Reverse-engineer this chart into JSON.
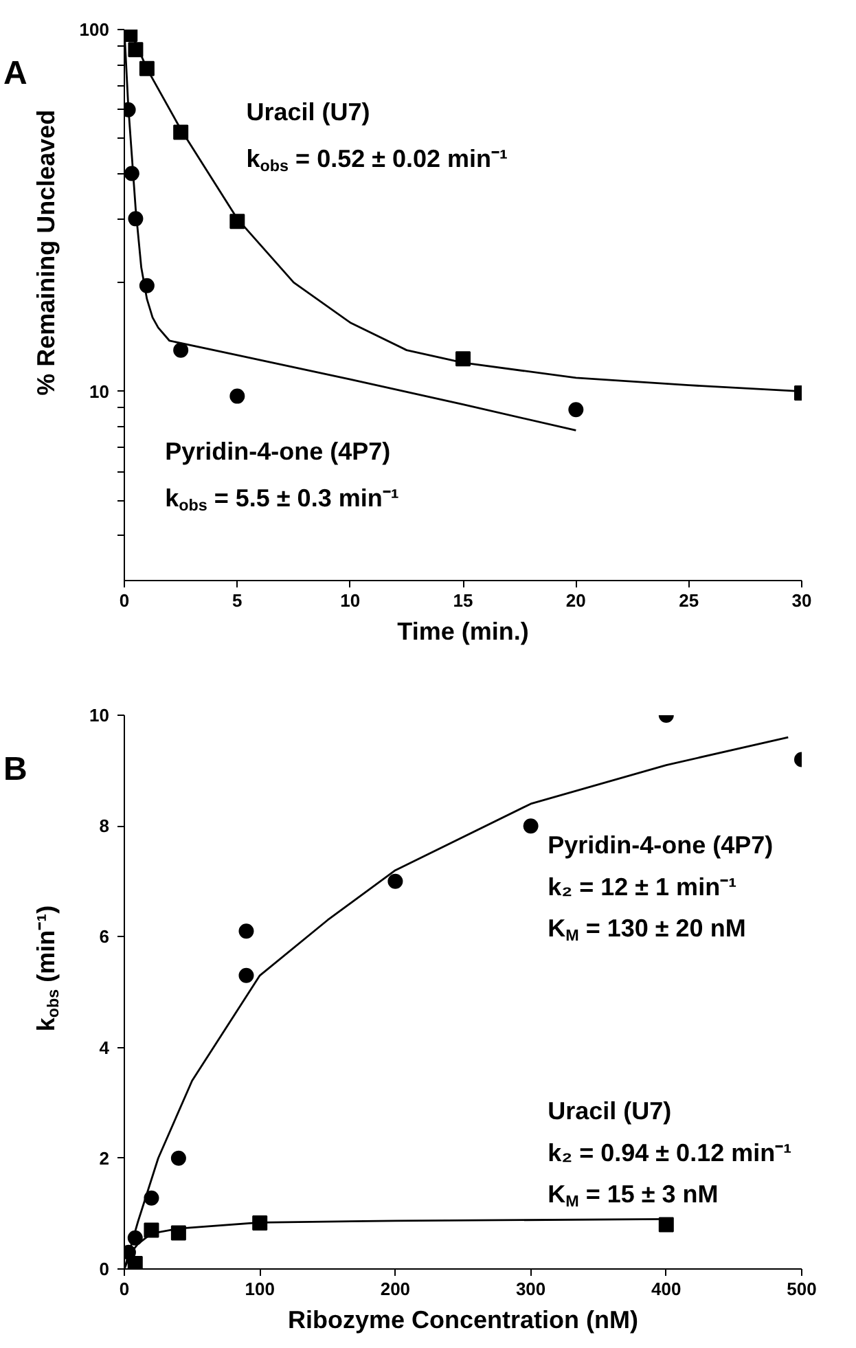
{
  "chart_data": [
    {
      "type": "scatter",
      "title": "A",
      "xlabel": "Time (min.)",
      "ylabel": "% Remaining Uncleaved",
      "log": "y",
      "grid": false,
      "xlim": [
        0,
        30
      ],
      "ylim": [
        3,
        100
      ],
      "xticks": [
        0,
        5,
        10,
        15,
        20,
        25,
        30
      ],
      "yticks": [
        10,
        100,
        {
          "value": 4,
          "label": null
        },
        {
          "value": 5,
          "label": null
        },
        {
          "value": 6,
          "label": null
        },
        {
          "value": 7,
          "label": null
        },
        {
          "value": 8,
          "label": null
        },
        {
          "value": 9,
          "label": null
        },
        {
          "value": 20,
          "label": null
        },
        {
          "value": 30,
          "label": null
        },
        {
          "value": 40,
          "label": null
        },
        {
          "value": 50,
          "label": null
        },
        {
          "value": 60,
          "label": null
        },
        {
          "value": 70,
          "label": null
        },
        {
          "value": 80,
          "label": null
        },
        {
          "value": 90,
          "label": null
        }
      ],
      "series": [
        {
          "marker": "square",
          "color": "#000000",
          "x": [
            0.25,
            0.5,
            1,
            2.5,
            5,
            15,
            30
          ],
          "values": [
            97,
            88,
            78,
            52,
            29.5,
            12.3,
            9.9
          ]
        },
        {
          "marker": "circle",
          "color": "#000000",
          "x": [
            0.17,
            0.33,
            0.5,
            1,
            2.5,
            5,
            20
          ],
          "values": [
            60,
            40,
            30,
            19.6,
            13,
            9.7,
            8.9
          ]
        },
        {
          "type": "line",
          "marker": "none",
          "color": "#000000",
          "x": [
            0,
            0.5,
            1,
            2.5,
            5,
            7.5,
            10,
            12.5,
            15,
            20,
            25,
            30
          ],
          "values": [
            100,
            92,
            78,
            53,
            30,
            20,
            15.5,
            13,
            12,
            10.9,
            10.4,
            10
          ]
        },
        {
          "type": "line",
          "marker": "none",
          "color": "#000000",
          "x": [
            0,
            0.17,
            0.33,
            0.5,
            0.75,
            1,
            1.25,
            1.5,
            2,
            5,
            10,
            15,
            20
          ],
          "values": [
            100,
            62,
            45,
            32,
            22,
            18,
            16,
            15,
            13.8,
            12.6,
            10.8,
            9.2,
            7.8
          ]
        }
      ],
      "annotations": [
        "Uracil (U7)",
        "k$_{obs}$ = 0.52 ± 0.02 min⁻¹",
        "Pyridin-4-one (4P7)",
        "k$_{obs}$ = 5.5 ± 0.3 min⁻¹"
      ]
    },
    {
      "type": "scatter",
      "title": "B",
      "xlabel": "Ribozyme Concentration (nM)",
      "ylabel": "k$_{obs}$ (min⁻¹)",
      "grid": false,
      "xlim": [
        0,
        500
      ],
      "ylim": [
        0,
        10
      ],
      "xticks": [
        0,
        100,
        200,
        300,
        400,
        500
      ],
      "yticks": [
        0,
        2,
        4,
        6,
        8,
        10
      ],
      "series": [
        {
          "marker": "square",
          "color": "#000000",
          "x": [
            8,
            20,
            40,
            100,
            400
          ],
          "values": [
            0.1,
            0.7,
            0.65,
            0.83,
            0.8
          ]
        },
        {
          "marker": "circle",
          "color": "#000000",
          "x": [
            3,
            8,
            20,
            40,
            90,
            90,
            200,
            300,
            400,
            500
          ],
          "values": [
            0.3,
            0.56,
            1.28,
            2.0,
            6.1,
            5.3,
            7.0,
            8.0,
            10.0,
            9.2
          ]
        },
        {
          "type": "line",
          "marker": "none",
          "color": "#000000",
          "x": [
            0,
            5,
            10,
            20,
            40,
            100,
            200,
            400
          ],
          "values": [
            0,
            0.3,
            0.45,
            0.64,
            0.73,
            0.84,
            0.87,
            0.9
          ]
        },
        {
          "type": "line",
          "marker": "none",
          "color": "#000000",
          "x": [
            0,
            10,
            25,
            50,
            100,
            150,
            200,
            300,
            400,
            490
          ],
          "values": [
            0,
            0.85,
            2.0,
            3.4,
            5.3,
            6.3,
            7.2,
            8.4,
            9.1,
            9.6
          ]
        }
      ],
      "annotations": [
        "Pyridin-4-one (4P7)",
        "k₂ = 12 ± 1 min⁻¹",
        "K$_{M}$ = 130 ± 20 nM",
        "Uracil (U7)",
        "k₂ = 0.94 ± 0.12 min⁻¹",
        "K$_{M}$ = 15 ± 3 nM"
      ]
    }
  ]
}
